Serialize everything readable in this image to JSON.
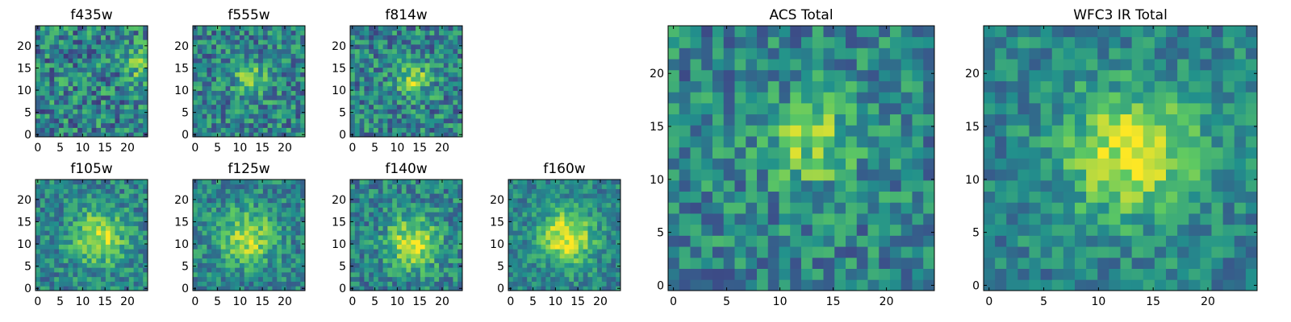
{
  "chart_data": [
    {
      "type": "heatmap",
      "title": "f435w",
      "xlim": [
        0,
        24
      ],
      "ylim": [
        0,
        24
      ],
      "xticks": [
        0,
        5,
        10,
        15,
        20
      ],
      "yticks": [
        0,
        5,
        10,
        15,
        20
      ],
      "grid": 24,
      "center": [
        22,
        15
      ],
      "peak": 0.25,
      "sigma": 2.5,
      "noise": 0.55,
      "seed": 11
    },
    {
      "type": "heatmap",
      "title": "f555w",
      "xlim": [
        0,
        24
      ],
      "ylim": [
        0,
        24
      ],
      "xticks": [
        0,
        5,
        10,
        15,
        20
      ],
      "yticks": [
        0,
        5,
        10,
        15,
        20
      ],
      "grid": 24,
      "center": [
        12,
        12
      ],
      "peak": 0.35,
      "sigma": 2.5,
      "noise": 0.5,
      "seed": 23
    },
    {
      "type": "heatmap",
      "title": "f814w",
      "xlim": [
        0,
        24
      ],
      "ylim": [
        0,
        24
      ],
      "xticks": [
        0,
        5,
        10,
        15,
        20
      ],
      "yticks": [
        0,
        5,
        10,
        15,
        20
      ],
      "grid": 24,
      "center": [
        13,
        12
      ],
      "peak": 0.35,
      "sigma": 2.5,
      "noise": 0.5,
      "seed": 37
    },
    {
      "type": "heatmap",
      "title": "f105w",
      "xlim": [
        0,
        24
      ],
      "ylim": [
        0,
        24
      ],
      "xticks": [
        0,
        5,
        10,
        15,
        20
      ],
      "yticks": [
        0,
        5,
        10,
        15,
        20
      ],
      "grid": 24,
      "center": [
        13,
        11
      ],
      "peak": 0.45,
      "sigma": 4,
      "noise": 0.4,
      "seed": 41
    },
    {
      "type": "heatmap",
      "title": "f125w",
      "xlim": [
        0,
        24
      ],
      "ylim": [
        0,
        24
      ],
      "xticks": [
        0,
        5,
        10,
        15,
        20
      ],
      "yticks": [
        0,
        5,
        10,
        15,
        20
      ],
      "grid": 24,
      "center": [
        11,
        11
      ],
      "peak": 0.45,
      "sigma": 4,
      "noise": 0.4,
      "seed": 53
    },
    {
      "type": "heatmap",
      "title": "f140w",
      "xlim": [
        0,
        24
      ],
      "ylim": [
        0,
        24
      ],
      "xticks": [
        0,
        5,
        10,
        15,
        20
      ],
      "yticks": [
        0,
        5,
        10,
        15,
        20
      ],
      "grid": 24,
      "center": [
        13,
        10
      ],
      "peak": 0.45,
      "sigma": 4,
      "noise": 0.42,
      "seed": 67
    },
    {
      "type": "heatmap",
      "title": "f160w",
      "xlim": [
        0,
        24
      ],
      "ylim": [
        0,
        24
      ],
      "xticks": [
        0,
        5,
        10,
        15,
        20
      ],
      "yticks": [
        0,
        5,
        10,
        15,
        20
      ],
      "grid": 24,
      "center": [
        12,
        11
      ],
      "peak": 0.55,
      "sigma": 4,
      "noise": 0.35,
      "seed": 79
    },
    {
      "type": "heatmap",
      "title": "ACS Total",
      "xlim": [
        0,
        24
      ],
      "ylim": [
        0,
        24
      ],
      "xticks": [
        0,
        5,
        10,
        15,
        20
      ],
      "yticks": [
        0,
        5,
        10,
        15,
        20
      ],
      "grid": 24,
      "center": [
        12.5,
        13
      ],
      "peak": 0.35,
      "sigma": 2.8,
      "noise": 0.45,
      "seed": 97
    },
    {
      "type": "heatmap",
      "title": "WFC3 IR Total",
      "xlim": [
        0,
        24
      ],
      "ylim": [
        0,
        24
      ],
      "xticks": [
        0,
        5,
        10,
        15,
        20
      ],
      "yticks": [
        0,
        5,
        10,
        15,
        20
      ],
      "grid": 24,
      "center": [
        12.5,
        12
      ],
      "peak": 0.5,
      "sigma": 4,
      "noise": 0.35,
      "seed": 131
    }
  ],
  "colormap": [
    "#440154",
    "#3b528b",
    "#21918c",
    "#5ec962",
    "#fde725"
  ]
}
